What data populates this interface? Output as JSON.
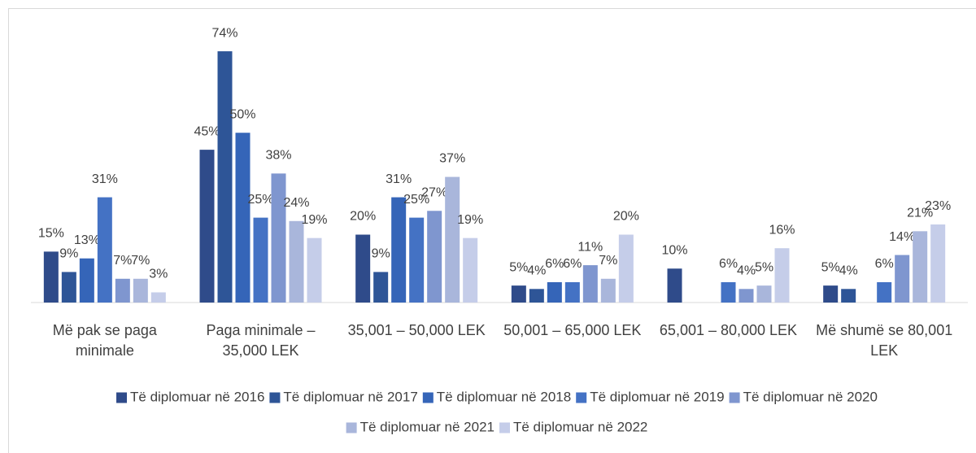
{
  "chart_data": {
    "type": "bar",
    "categories": [
      "Më pak se paga minimale",
      "Paga minimale – 35,000 LEK",
      "35,001 – 50,000 LEK",
      "50,001 – 65,000 LEK",
      "65,001 – 80,000 LEK",
      "Më shumë se 80,001 LEK"
    ],
    "series": [
      {
        "name": "Të diplomuar në 2016",
        "color": "#2f4b8a",
        "values": [
          15,
          45,
          20,
          5,
          10,
          5
        ],
        "value_labels": [
          "15%",
          "45%",
          "20%",
          "5%",
          "10%",
          "5%"
        ]
      },
      {
        "name": "Të diplomuar në 2017",
        "color": "#2e5597",
        "values": [
          9,
          74,
          9,
          4,
          null,
          4
        ],
        "value_labels": [
          "9%",
          "74%",
          "9%",
          "4%",
          null,
          "4%"
        ]
      },
      {
        "name": "Të diplomuar në 2018",
        "color": "#3565b8",
        "values": [
          13,
          50,
          31,
          6,
          null,
          null
        ],
        "value_labels": [
          "13%",
          "50%",
          "31%",
          "6%",
          null,
          null
        ]
      },
      {
        "name": "Të diplomuar në 2019",
        "color": "#4472c4",
        "values": [
          31,
          25,
          25,
          6,
          6,
          6
        ],
        "value_labels": [
          "31%",
          "25%",
          "25%",
          "6%",
          "6%",
          "6%"
        ]
      },
      {
        "name": "Të diplomuar në 2020",
        "color": "#7f96cf",
        "values": [
          7,
          38,
          27,
          11,
          4,
          14
        ],
        "value_labels": [
          "7%",
          "38%",
          "27%",
          "11%",
          "4%",
          "14%"
        ]
      },
      {
        "name": "Të diplomuar në 2021",
        "color": "#a9b6db",
        "values": [
          7,
          24,
          37,
          7,
          5,
          21
        ],
        "value_labels": [
          "7%",
          "24%",
          "37%",
          "7%",
          "5%",
          "21%"
        ]
      },
      {
        "name": "Të diplomuar në 2022",
        "color": "#c5cde9",
        "values": [
          3,
          19,
          19,
          20,
          16,
          23
        ],
        "value_labels": [
          "3%",
          "19%",
          "19%",
          "20%",
          "16%",
          "23%"
        ]
      }
    ],
    "ylim": [
      0,
      80
    ],
    "legend": "bottom"
  }
}
